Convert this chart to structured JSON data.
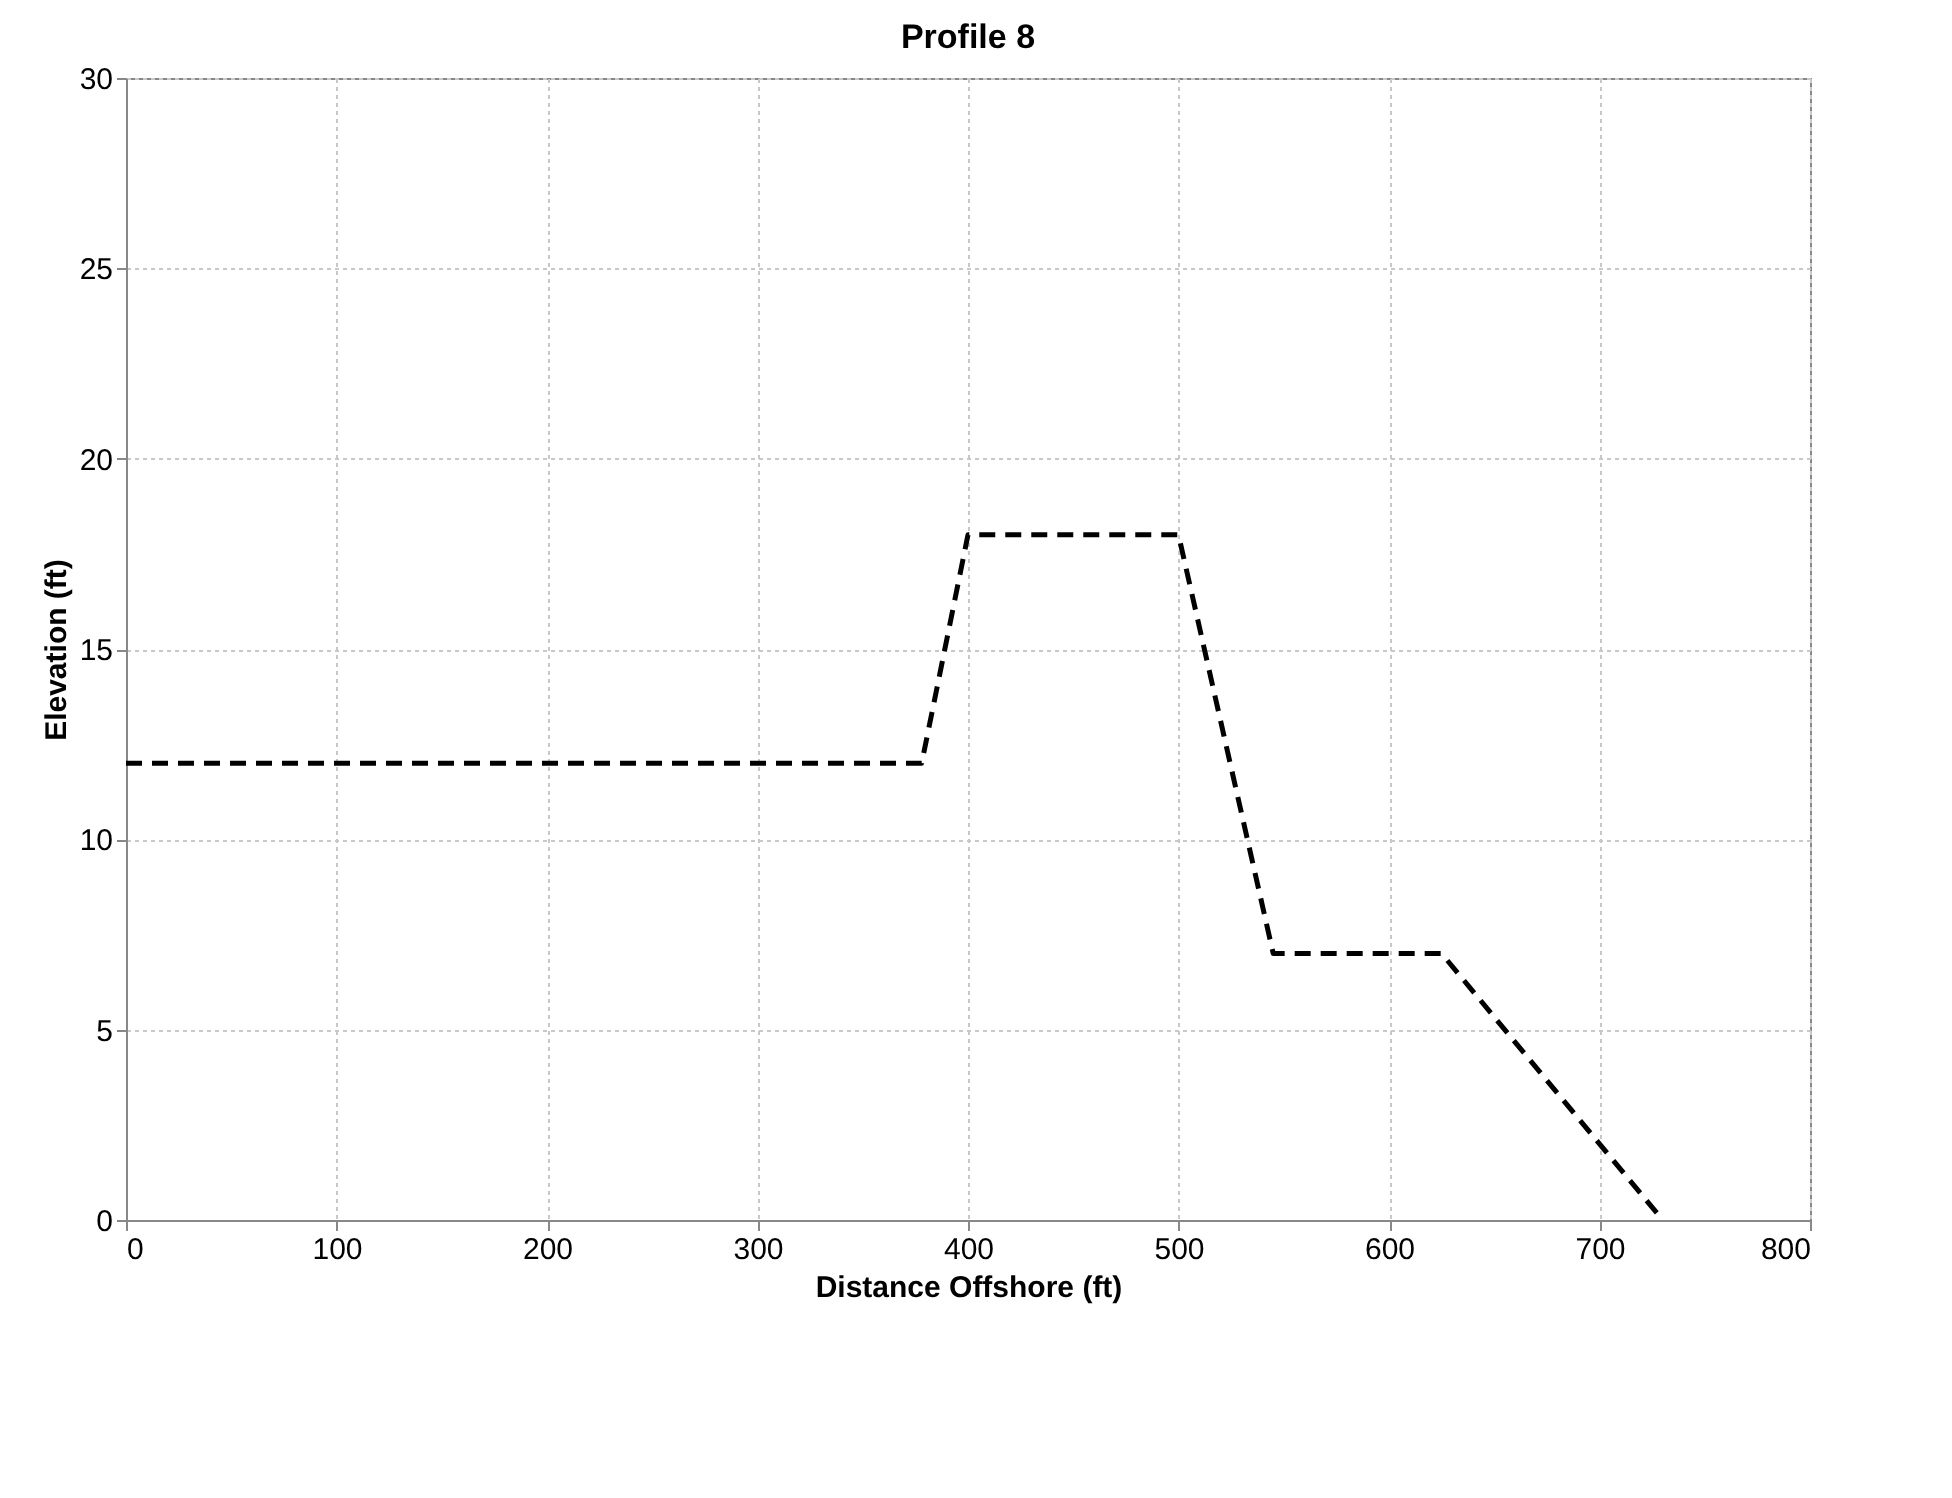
{
  "chart_data": {
    "type": "line",
    "title": "Profile 8",
    "xlabel": "Distance Offshore (ft)",
    "ylabel": "Elevation (ft)",
    "x": [
      0,
      378,
      400,
      500,
      545,
      625,
      730
    ],
    "series": [
      {
        "color": "#000000",
        "values": [
          12,
          12,
          18,
          18,
          7,
          7,
          0
        ]
      }
    ],
    "xlim": [
      0,
      800
    ],
    "xticks": [
      0,
      100,
      200,
      300,
      400,
      500,
      600,
      700,
      800
    ],
    "ylim": [
      0,
      30
    ],
    "yticks": [
      0,
      5,
      10,
      15,
      20,
      25,
      30
    ],
    "grid": true,
    "marker": "none",
    "line_style": "dashed"
  }
}
